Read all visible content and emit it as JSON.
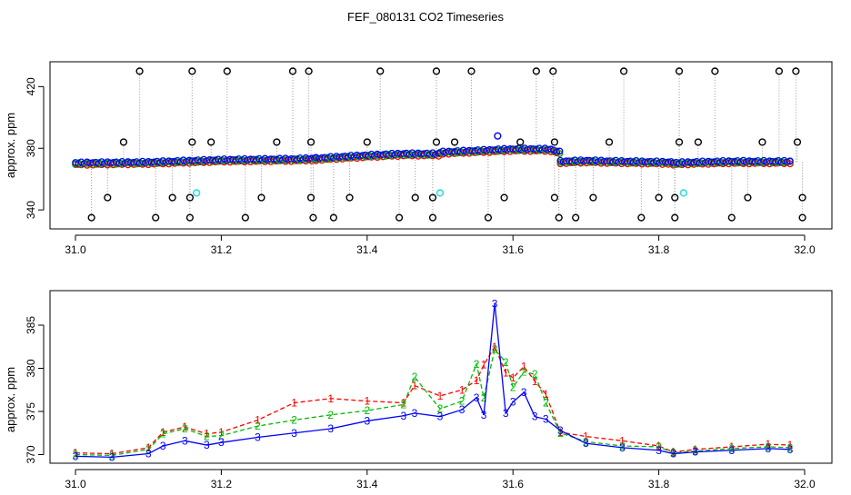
{
  "figure_title": "FEF_080131  CO2 Timeseries",
  "colors": {
    "series1": "#ff0000",
    "series2": "#00bb00",
    "series3": "#0000ff",
    "outlier": "#000000",
    "flagged": "#33dddd",
    "spike_line": "#999999"
  },
  "chart_data": [
    {
      "type": "scatter",
      "title": "FEF_080131  CO2 Timeseries",
      "xlabel": "",
      "ylabel": "approx. ppm",
      "xlim": [
        31.0,
        32.0
      ],
      "ylim": [
        333,
        432
      ],
      "xticks": [
        "31.0",
        "31.2",
        "31.4",
        "31.6",
        "31.8",
        "32.0"
      ],
      "yticks": [
        "340",
        "380",
        "420"
      ],
      "grid": false,
      "legend": "none",
      "baseline_segments": [
        {
          "x": [
            31.0,
            31.1,
            31.2,
            31.3,
            31.33
          ],
          "y": [
            370,
            370.5,
            372,
            372.5,
            373
          ]
        },
        {
          "x": [
            31.33,
            31.4,
            31.45,
            31.5
          ],
          "y": [
            373,
            375,
            376,
            376
          ]
        },
        {
          "x": [
            31.5,
            31.55,
            31.6,
            31.65,
            31.665
          ],
          "y": [
            377,
            378,
            379,
            379,
            377
          ]
        },
        {
          "x": [
            31.665,
            31.7,
            31.75,
            31.82
          ],
          "y": [
            371,
            371.5,
            371,
            370.5
          ]
        },
        {
          "x": [
            31.82,
            31.85,
            31.9,
            31.95,
            31.98
          ],
          "y": [
            370,
            370.5,
            371,
            371,
            371
          ]
        }
      ],
      "outliers_high": [
        {
          "x": 31.088,
          "y": 430
        },
        {
          "x": 31.16,
          "y": 430
        },
        {
          "x": 31.208,
          "y": 430
        },
        {
          "x": 31.298,
          "y": 430
        },
        {
          "x": 31.32,
          "y": 430
        },
        {
          "x": 31.418,
          "y": 430
        },
        {
          "x": 31.495,
          "y": 430
        },
        {
          "x": 31.543,
          "y": 430
        },
        {
          "x": 31.632,
          "y": 430
        },
        {
          "x": 31.655,
          "y": 430
        },
        {
          "x": 31.752,
          "y": 430
        },
        {
          "x": 31.828,
          "y": 430
        },
        {
          "x": 31.877,
          "y": 430
        },
        {
          "x": 31.965,
          "y": 430
        },
        {
          "x": 31.988,
          "y": 430
        },
        {
          "x": 31.066,
          "y": 384
        },
        {
          "x": 31.16,
          "y": 384
        },
        {
          "x": 31.186,
          "y": 384
        },
        {
          "x": 31.276,
          "y": 384
        },
        {
          "x": 31.323,
          "y": 384
        },
        {
          "x": 31.4,
          "y": 384
        },
        {
          "x": 31.495,
          "y": 384
        },
        {
          "x": 31.52,
          "y": 384
        },
        {
          "x": 31.61,
          "y": 384
        },
        {
          "x": 31.657,
          "y": 384
        },
        {
          "x": 31.732,
          "y": 384
        },
        {
          "x": 31.828,
          "y": 384
        },
        {
          "x": 31.854,
          "y": 384
        },
        {
          "x": 31.942,
          "y": 384
        },
        {
          "x": 31.99,
          "y": 384
        }
      ],
      "outliers_low": [
        {
          "x": 31.022,
          "y": 335
        },
        {
          "x": 31.11,
          "y": 335
        },
        {
          "x": 31.157,
          "y": 335
        },
        {
          "x": 31.233,
          "y": 335
        },
        {
          "x": 31.326,
          "y": 335
        },
        {
          "x": 31.354,
          "y": 335
        },
        {
          "x": 31.444,
          "y": 335
        },
        {
          "x": 31.49,
          "y": 335
        },
        {
          "x": 31.566,
          "y": 335
        },
        {
          "x": 31.663,
          "y": 335
        },
        {
          "x": 31.686,
          "y": 335
        },
        {
          "x": 31.776,
          "y": 335
        },
        {
          "x": 31.822,
          "y": 335
        },
        {
          "x": 31.9,
          "y": 335
        },
        {
          "x": 31.997,
          "y": 335
        },
        {
          "x": 31.044,
          "y": 348
        },
        {
          "x": 31.133,
          "y": 348
        },
        {
          "x": 31.157,
          "y": 348
        },
        {
          "x": 31.255,
          "y": 348
        },
        {
          "x": 31.323,
          "y": 348
        },
        {
          "x": 31.376,
          "y": 348
        },
        {
          "x": 31.466,
          "y": 348
        },
        {
          "x": 31.49,
          "y": 348
        },
        {
          "x": 31.588,
          "y": 348
        },
        {
          "x": 31.657,
          "y": 348
        },
        {
          "x": 31.71,
          "y": 348
        },
        {
          "x": 31.8,
          "y": 348
        },
        {
          "x": 31.822,
          "y": 348
        },
        {
          "x": 31.922,
          "y": 348
        },
        {
          "x": 31.997,
          "y": 348
        }
      ],
      "flagged_points": [
        {
          "x": 31.166,
          "y": 351
        },
        {
          "x": 31.5,
          "y": 351
        },
        {
          "x": 31.834,
          "y": 351
        }
      ],
      "peak_point": {
        "x": 31.579,
        "y": 388
      }
    },
    {
      "type": "line",
      "title": "",
      "xlabel": "",
      "ylabel": "approx. ppm",
      "xlim": [
        31.0,
        32.0
      ],
      "ylim": [
        369,
        389
      ],
      "xticks": [
        "31.0",
        "31.2",
        "31.4",
        "31.6",
        "31.8",
        "32.0"
      ],
      "yticks": [
        "370",
        "375",
        "380",
        "385"
      ],
      "grid": false,
      "legend": "none",
      "marker_labels": [
        "1",
        "2",
        "3"
      ],
      "x": [
        31.0,
        31.05,
        31.1,
        31.12,
        31.15,
        31.18,
        31.2,
        31.25,
        31.3,
        31.35,
        31.4,
        31.45,
        31.465,
        31.5,
        31.53,
        31.55,
        31.56,
        31.575,
        31.59,
        31.6,
        31.615,
        31.63,
        31.645,
        31.665,
        31.7,
        31.75,
        31.8,
        31.82,
        31.85,
        31.9,
        31.95,
        31.98
      ],
      "series": [
        {
          "name": "1",
          "values": [
            370.2,
            370.1,
            370.8,
            372.6,
            373.2,
            372.4,
            372.6,
            374.0,
            376.0,
            376.5,
            376.2,
            376.0,
            378.0,
            376.8,
            377.5,
            378.6,
            380.4,
            382.5,
            379.5,
            378.9,
            380.2,
            378.5,
            377.0,
            372.6,
            372.1,
            371.6,
            371.0,
            370.3,
            370.6,
            370.9,
            371.2,
            371.1
          ]
        },
        {
          "name": "2",
          "values": [
            370.0,
            369.9,
            370.6,
            372.4,
            373.0,
            372.1,
            372.2,
            373.3,
            374.0,
            374.6,
            375.1,
            375.8,
            379.0,
            375.3,
            376.2,
            380.5,
            376.6,
            382.2,
            380.7,
            377.8,
            379.6,
            379.3,
            376.0,
            372.5,
            371.5,
            371.0,
            370.9,
            370.2,
            370.4,
            370.7,
            370.9,
            370.8
          ]
        },
        {
          "name": "3",
          "values": [
            369.8,
            369.7,
            370.1,
            371.0,
            371.6,
            371.1,
            371.4,
            372.0,
            372.5,
            373.0,
            373.9,
            374.5,
            374.8,
            374.4,
            375.2,
            376.6,
            374.6,
            387.5,
            374.8,
            376.1,
            377.2,
            374.4,
            374.1,
            372.8,
            371.3,
            370.8,
            370.5,
            370.1,
            370.3,
            370.5,
            370.7,
            370.6
          ]
        }
      ]
    }
  ]
}
